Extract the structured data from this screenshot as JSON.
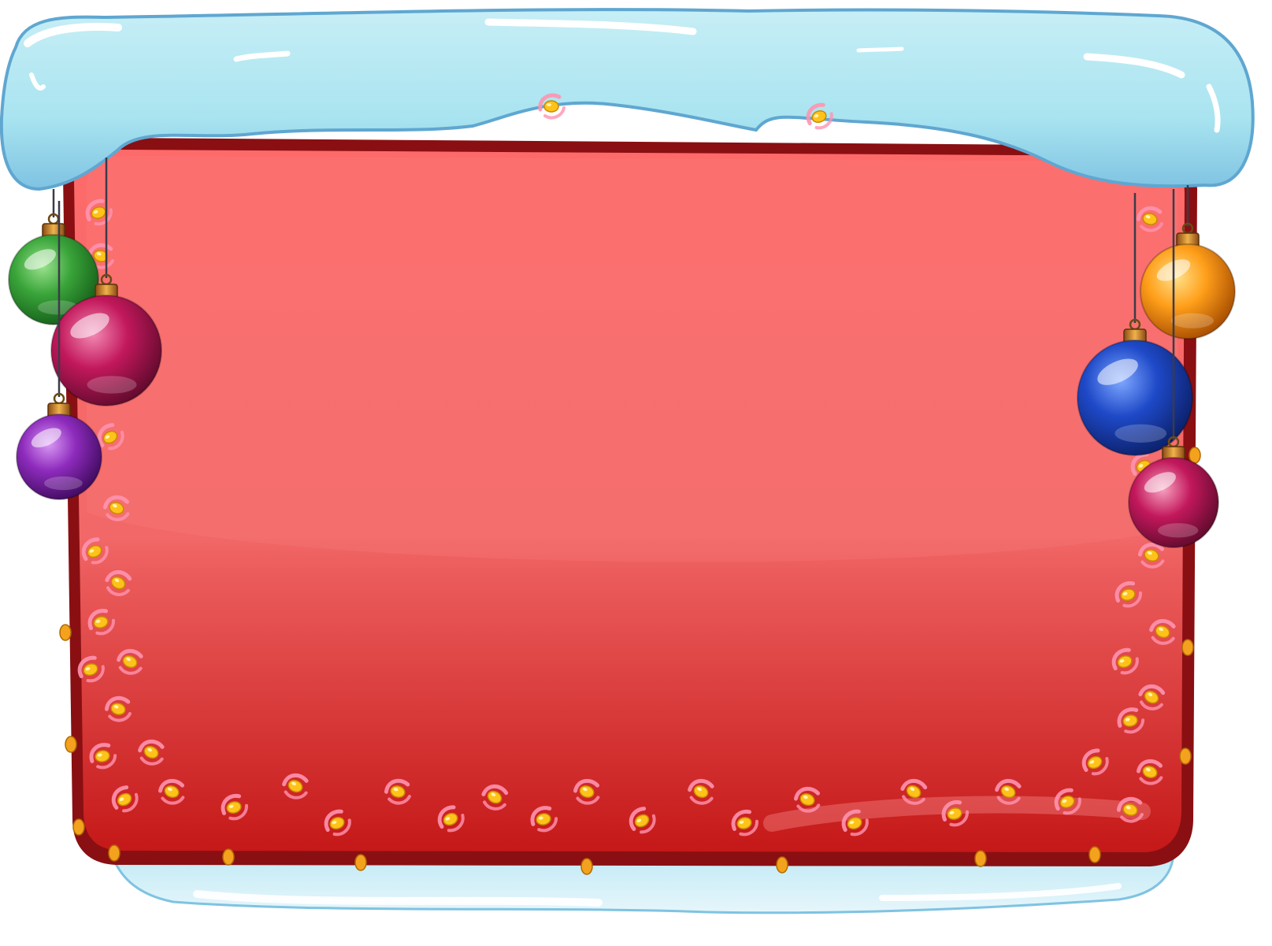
{
  "scene": {
    "kind": "christmas-sign-board",
    "board": {
      "color_top": "#fd6a6a",
      "color_bottom": "#c91a1a",
      "border_color": "#8a0f12",
      "sheen_color": "#ff8c8c"
    },
    "snow": {
      "light": "#ade6f0",
      "mid": "#8ccfe6",
      "shadow": "#6fb3d6",
      "highlight": "#ffffff"
    },
    "lights": {
      "bulb_color": "#ffc21a",
      "glow_color": "#ff93b0",
      "edge_bulb_color": "#f4a21e"
    },
    "ornaments": [
      {
        "name": "green-ornament",
        "color": "#3aa53a",
        "side": "left"
      },
      {
        "name": "magenta-ornament",
        "color": "#c2185b",
        "side": "left"
      },
      {
        "name": "purple-ornament",
        "color": "#8e2bbd",
        "side": "left"
      },
      {
        "name": "orange-ornament",
        "color": "#ff9f1a",
        "side": "right"
      },
      {
        "name": "blue-ornament",
        "color": "#1e49c8",
        "side": "right"
      },
      {
        "name": "pink-ornament",
        "color": "#c2185b",
        "side": "right"
      }
    ]
  }
}
